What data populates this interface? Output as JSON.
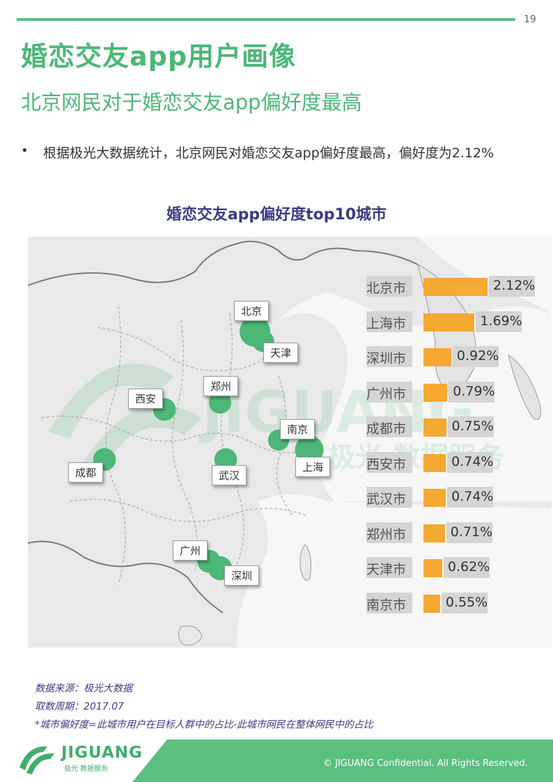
{
  "page": {
    "number": "19",
    "title": "婚恋交友app用户画像",
    "subtitle": "北京网民对于婚恋交友app偏好度最高",
    "bullet": "根据极光大数据统计，北京网民对婚恋交友app偏好度最高，偏好度为2.12%"
  },
  "map": {
    "labels": [
      "北京",
      "天津",
      "西安",
      "郑州",
      "南京",
      "成都",
      "武汉",
      "上海",
      "广州",
      "深圳"
    ],
    "watermark": {
      "brand": "JIGUANG",
      "tagline": "极光 数据服务"
    }
  },
  "chart_data": {
    "type": "bar",
    "orientation": "horizontal",
    "title": "婚恋交友app偏好度top10城市",
    "categories": [
      "北京市",
      "上海市",
      "深圳市",
      "广州市",
      "成都市",
      "西安市",
      "武汉市",
      "郑州市",
      "天津市",
      "南京市"
    ],
    "values": [
      2.12,
      1.69,
      0.92,
      0.79,
      0.75,
      0.74,
      0.74,
      0.71,
      0.62,
      0.55
    ],
    "value_labels": [
      "2.12%",
      "1.69%",
      "0.92%",
      "0.79%",
      "0.75%",
      "0.74%",
      "0.74%",
      "0.71%",
      "0.62%",
      "0.55%"
    ],
    "bar_color": "#f5a832",
    "bubble_color": "#4cb776"
  },
  "notes": {
    "source": "数据来源：极光大数据",
    "period": "取数周期：2017.07",
    "definition": "*城市偏好度=此城市用户在目标人群中的占比-此城市网民在整体网民中的占比"
  },
  "footer": {
    "logo_text": "JIGUANG",
    "logo_sub": "极光 数据服务",
    "copyright": "© JIGUANG  Confidential. All Rights Reserved.",
    "accent": "#5bbf7f"
  }
}
